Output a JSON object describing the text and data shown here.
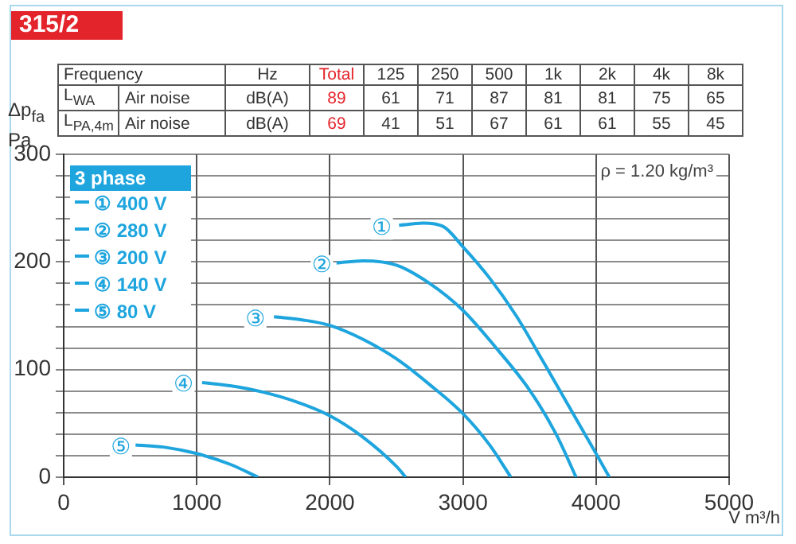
{
  "chart_data": [
    {
      "type": "other",
      "title": "315/2",
      "categories": [
        "Frequency",
        "Hz",
        "Total",
        "125",
        "250",
        "500",
        "1k",
        "2k",
        "4k",
        "8k"
      ],
      "y_categories": [
        "L$_{WA}$",
        "L$_{PA,4m}$"
      ],
      "cell_labels": [
        [
          "Air noise",
          "dB(A)",
          "89",
          "61",
          "71",
          "87",
          "81",
          "81",
          "75",
          "65"
        ],
        [
          "Air noise",
          "dB(A)",
          "69",
          "41",
          "51",
          "67",
          "61",
          "61",
          "55",
          "45"
        ]
      ]
    },
    {
      "type": "line",
      "xlabel": "V̇ m³/h",
      "ylabel": "Δp$_{fa}$\nPa",
      "legend_title": "3 phase",
      "legend": "top left",
      "grid": true,
      "xlim": [
        0,
        5000
      ],
      "xticks": [
        0,
        1000,
        2000,
        3000,
        4000,
        5000
      ],
      "ylim": [
        0,
        300
      ],
      "yticks": [
        0,
        {
          "value": 20,
          "label": null
        },
        {
          "value": 40,
          "label": null
        },
        {
          "value": 60,
          "label": null
        },
        {
          "value": 80,
          "label": null
        },
        100,
        {
          "value": 120,
          "label": null
        },
        {
          "value": 140,
          "label": null
        },
        {
          "value": 160,
          "label": null
        },
        {
          "value": 180,
          "label": null
        },
        200,
        {
          "value": 220,
          "label": null
        },
        {
          "value": 240,
          "label": null
        },
        {
          "value": 260,
          "label": null
        },
        {
          "value": 280,
          "label": null
        },
        300
      ],
      "series": [
        {
          "name": "① 400 V",
          "color": "#1ea5de",
          "x": [
            2520,
            2700,
            2850,
            3000,
            3200,
            3400,
            3600,
            3800,
            4000,
            4100
          ],
          "values": [
            234,
            236,
            233,
            214,
            185,
            150,
            108,
            65,
            22,
            0
          ]
        },
        {
          "name": "② 280 V",
          "color": "#1ea5de",
          "x": [
            2050,
            2250,
            2500,
            2750,
            3000,
            3250,
            3500,
            3700,
            3850
          ],
          "values": [
            199,
            201,
            197,
            180,
            155,
            120,
            81,
            40,
            0
          ]
        },
        {
          "name": "③ 200 V",
          "color": "#1ea5de",
          "x": [
            1580,
            1800,
            2000,
            2250,
            2500,
            2750,
            3000,
            3200,
            3360
          ],
          "values": [
            149,
            146,
            141,
            128,
            110,
            86,
            59,
            30,
            0
          ]
        },
        {
          "name": "④ 140 V",
          "color": "#1ea5de",
          "x": [
            1040,
            1250,
            1500,
            1750,
            2000,
            2250,
            2500,
            2570
          ],
          "values": [
            88,
            85,
            79,
            70,
            57,
            37,
            10,
            0
          ]
        },
        {
          "name": "⑤ 80 V",
          "color": "#1ea5de",
          "x": [
            540,
            750,
            1000,
            1250,
            1460
          ],
          "values": [
            30,
            28,
            22,
            12,
            0
          ]
        }
      ],
      "annotations": [
        {
          "text": "①",
          "x": 2390,
          "y": 231
        },
        {
          "text": "②",
          "x": 1940,
          "y": 196
        },
        {
          "text": "③",
          "x": 1440,
          "y": 146
        },
        {
          "text": "④",
          "x": 900,
          "y": 85
        },
        {
          "text": "⑤",
          "x": 430,
          "y": 27
        },
        "ρ = 1.20 kg/m³"
      ]
    }
  ]
}
